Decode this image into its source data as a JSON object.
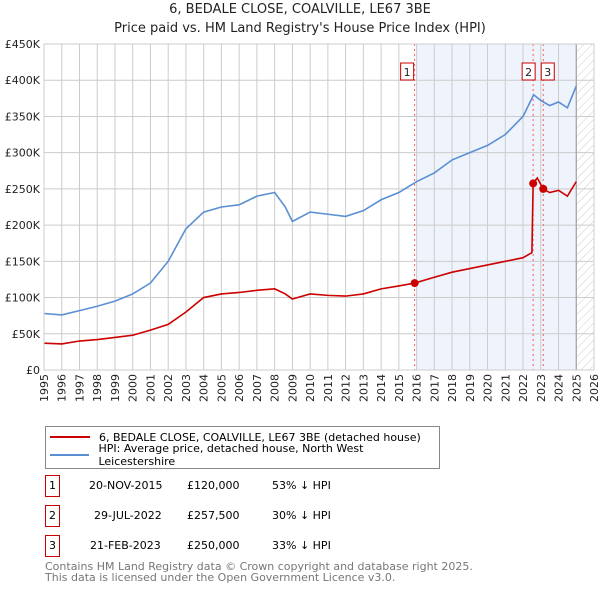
{
  "chart_data": {
    "type": "line",
    "title": "6, BEDALE CLOSE, COALVILLE, LE67 3BE",
    "subtitle": "Price paid vs. HM Land Registry's House Price Index (HPI)",
    "xlim": [
      1995,
      2026
    ],
    "ylim": [
      0,
      450000
    ],
    "x_ticks": [
      "1995",
      "1996",
      "1997",
      "1998",
      "1999",
      "2000",
      "2001",
      "2002",
      "2003",
      "2004",
      "2005",
      "2006",
      "2007",
      "2008",
      "2009",
      "2010",
      "2011",
      "2012",
      "2013",
      "2014",
      "2015",
      "2016",
      "2017",
      "2018",
      "2019",
      "2020",
      "2021",
      "2022",
      "2023",
      "2024",
      "2025",
      "2026"
    ],
    "y_ticks": [
      {
        "v": 0,
        "label": "£0"
      },
      {
        "v": 50000,
        "label": "£50K"
      },
      {
        "v": 100000,
        "label": "£100K"
      },
      {
        "v": 150000,
        "label": "£150K"
      },
      {
        "v": 200000,
        "label": "£200K"
      },
      {
        "v": 250000,
        "label": "£250K"
      },
      {
        "v": 300000,
        "label": "£300K"
      },
      {
        "v": 350000,
        "label": "£350K"
      },
      {
        "v": 400000,
        "label": "£400K"
      },
      {
        "v": 450000,
        "label": "£450K"
      }
    ],
    "grid": true,
    "series": [
      {
        "name": "6, BEDALE CLOSE, COALVILLE, LE67 3BE (detached house)",
        "color": "#cc0000",
        "x": [
          1995,
          1996,
          1997,
          1998,
          1999,
          2000,
          2001,
          2002,
          2003,
          2004,
          2005,
          2006,
          2007,
          2008,
          2008.6,
          2009,
          2010,
          2011,
          2012,
          2013,
          2014,
          2015,
          2015.89,
          2017,
          2018,
          2019,
          2020,
          2021,
          2022,
          2022.5,
          2022.57,
          2022.8,
          2023.14,
          2023.5,
          2024,
          2024.5,
          2025
        ],
        "y": [
          37000,
          36000,
          40000,
          42000,
          45000,
          48000,
          55000,
          63000,
          80000,
          100000,
          105000,
          107000,
          110000,
          112000,
          105000,
          98000,
          105000,
          103000,
          102000,
          105000,
          112000,
          116000,
          120000,
          128000,
          135000,
          140000,
          145000,
          150000,
          155000,
          162000,
          257500,
          265000,
          250000,
          245000,
          248000,
          240000,
          260000
        ]
      },
      {
        "name": "HPI: Average price, detached house, North West Leicestershire",
        "color": "#5b8fd4",
        "x": [
          1995,
          1996,
          1997,
          1998,
          1999,
          2000,
          2001,
          2002,
          2003,
          2004,
          2005,
          2006,
          2007,
          2008,
          2008.6,
          2009,
          2010,
          2011,
          2012,
          2013,
          2014,
          2015,
          2016,
          2017,
          2018,
          2019,
          2020,
          2021,
          2022,
          2022.6,
          2023,
          2023.5,
          2024,
          2024.5,
          2025
        ],
        "y": [
          78000,
          76000,
          82000,
          88000,
          95000,
          105000,
          120000,
          150000,
          195000,
          218000,
          225000,
          228000,
          240000,
          245000,
          225000,
          205000,
          218000,
          215000,
          212000,
          220000,
          235000,
          245000,
          260000,
          272000,
          290000,
          300000,
          310000,
          325000,
          350000,
          380000,
          372000,
          365000,
          370000,
          362000,
          392000
        ]
      }
    ],
    "sales": [
      {
        "id": "1",
        "date": "20-NOV-2015",
        "x": 2015.89,
        "price": "£120,000",
        "value": 120000,
        "hpi": "53% ↓ HPI"
      },
      {
        "id": "2",
        "date": "29-JUL-2022",
        "x": 2022.57,
        "price": "£257,500",
        "value": 257500,
        "hpi": "30% ↓ HPI"
      },
      {
        "id": "3",
        "date": "21-FEB-2023",
        "x": 2023.14,
        "price": "£250,000",
        "value": 250000,
        "hpi": "33% ↓ HPI"
      }
    ],
    "shaded_range": [
      2016,
      2025
    ],
    "hatched_range": [
      2025,
      2026
    ]
  },
  "legend": {
    "sale": "6, BEDALE CLOSE, COALVILLE, LE67 3BE (detached house)",
    "hpi": "HPI: Average price, detached house, North West Leicestershire"
  },
  "footer": {
    "line1": "Contains HM Land Registry data © Crown copyright and database right 2025.",
    "line2": "This data is licensed under the Open Government Licence v3.0."
  }
}
